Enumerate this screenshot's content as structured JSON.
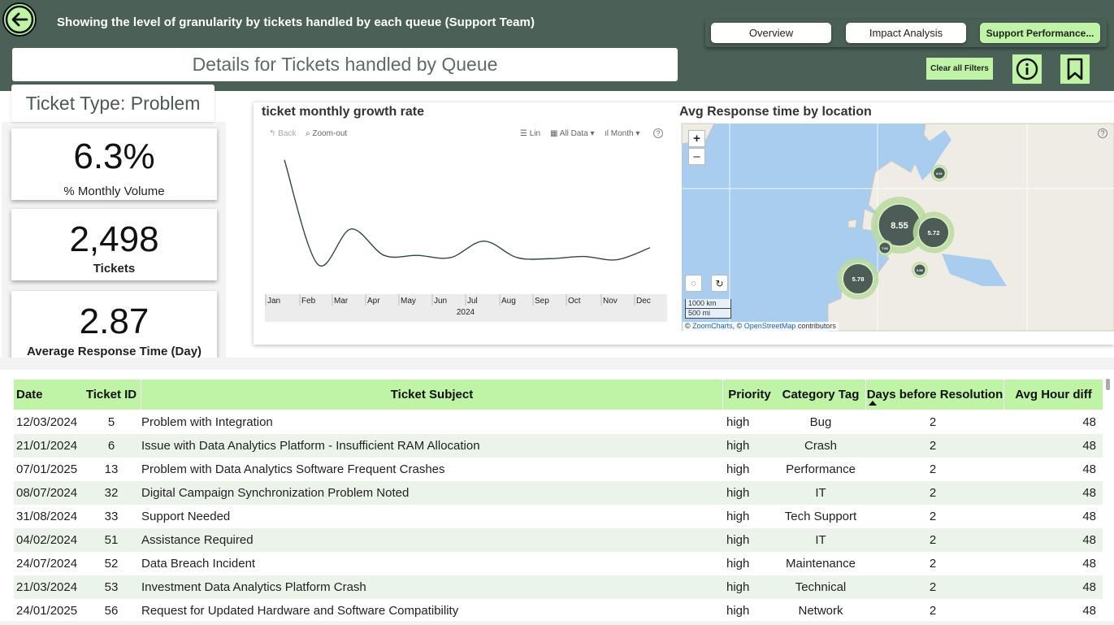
{
  "header": {
    "title": "Showing the level of granularity by tickets handled by each queue (Support Team)",
    "details_title": "Details for Tickets handled by  Queue",
    "nav": [
      {
        "label": "Overview"
      },
      {
        "label": "Impact Analysis"
      },
      {
        "label": "Support Performance..."
      }
    ],
    "clear_filters": "Clear all Filters",
    "colors": {
      "band": "#4b6158",
      "accent": "#bff3a6"
    }
  },
  "ticket_type": "Ticket Type: Problem",
  "kpis": [
    {
      "value": "6.3%",
      "label": "% Monthly Volume"
    },
    {
      "value": "2,498",
      "label": "Tickets"
    },
    {
      "value": "2.87",
      "label": "Average Response Time (Day)"
    }
  ],
  "growth_chart": {
    "title": "ticket monthly growth rate",
    "toolbar": {
      "back": "Back",
      "zoom_out": "Zoom-out",
      "lin": "Lin",
      "all_data": "All Data",
      "month": "Month"
    },
    "year_label": "2024"
  },
  "chart_data": {
    "type": "line",
    "x": [
      "Jan",
      "Feb",
      "Mar",
      "Apr",
      "May",
      "Jun",
      "Jul",
      "Aug",
      "Sep",
      "Oct",
      "Nov",
      "Dec"
    ],
    "series": [
      {
        "values": [
          0.95,
          0.0,
          0.32,
          0.08,
          0.08,
          0.06,
          0.21,
          0.06,
          0.05,
          0.07,
          0.04,
          0.15
        ]
      }
    ],
    "grid": false
  },
  "map": {
    "title": "Avg Response time by location",
    "zoom_in": "+",
    "zoom_out": "–",
    "scale_km": "1000 km",
    "scale_mi": "500 mi",
    "attribution_prefix": "© ",
    "attribution_zc": "ZoomCharts",
    "attribution_mid": ", © ",
    "attribution_osm": "OpenStreetMap",
    "attribution_suffix": " contributors",
    "bubbles": [
      {
        "label": "8.55",
        "value": 8.55
      },
      {
        "label": "5.72",
        "value": 5.72
      },
      {
        "label": "5.78",
        "value": 5.78
      },
      {
        "label": "8.51",
        "value": 8.51
      },
      {
        "label": "7.66",
        "value": 7.66
      },
      {
        "label": "6.86",
        "value": 6.86
      }
    ]
  },
  "table": {
    "columns": [
      "Date",
      "Ticket ID",
      "Ticket Subject",
      "Priority",
      "Category Tag",
      "Days before Resolution",
      "Avg Hour diff"
    ],
    "rows": [
      [
        "12/03/2024",
        "5",
        "Problem with Integration",
        "high",
        "Bug",
        "2",
        "48"
      ],
      [
        "21/01/2024",
        "6",
        "Issue with Data Analytics Platform - Insufficient RAM Allocation",
        "high",
        "Crash",
        "2",
        "48"
      ],
      [
        "07/01/2025",
        "13",
        "Problem with Data Analytics Software Frequent Crashes",
        "high",
        "Performance",
        "2",
        "48"
      ],
      [
        "08/07/2024",
        "32",
        "Digital Campaign Synchronization Problem Noted",
        "high",
        "IT",
        "2",
        "48"
      ],
      [
        "31/08/2024",
        "33",
        "Support Needed",
        "high",
        "Tech Support",
        "2",
        "48"
      ],
      [
        "04/02/2024",
        "51",
        "Assistance Required",
        "high",
        "IT",
        "2",
        "48"
      ],
      [
        "24/07/2024",
        "52",
        "Data Breach Incident",
        "high",
        "Maintenance",
        "2",
        "48"
      ],
      [
        "21/03/2024",
        "53",
        "Investment Data Analytics Platform Crash",
        "high",
        "Technical",
        "2",
        "48"
      ],
      [
        "24/01/2025",
        "56",
        "Request for Updated Hardware and Software Compatibility",
        "high",
        "Network",
        "2",
        "48"
      ]
    ]
  }
}
